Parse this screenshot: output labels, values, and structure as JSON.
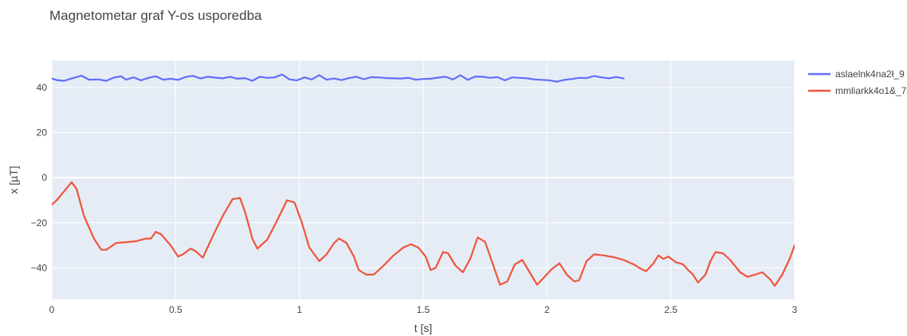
{
  "chart_data": {
    "type": "line",
    "title": "Magnetometar graf Y-os usporedba",
    "xlabel": "t [s]",
    "ylabel": "x [µT]",
    "xlim": [
      0,
      3
    ],
    "ylim": [
      -54,
      52
    ],
    "x_ticks": [
      0,
      0.5,
      1,
      1.5,
      2,
      2.5,
      3
    ],
    "x_tick_labels": [
      "0",
      "0.5",
      "1",
      "1.5",
      "2",
      "2.5",
      "3"
    ],
    "y_ticks": [
      -40,
      -20,
      0,
      20,
      40
    ],
    "y_tick_labels": [
      "−40",
      "−20",
      "0",
      "20",
      "40"
    ],
    "grid": true,
    "legend_position": "right",
    "series": [
      {
        "name": "aslaelnk4na2ł_9",
        "color": "#636efa",
        "points": [
          [
            0,
            44
          ],
          [
            0.02,
            43.3
          ],
          [
            0.05,
            43
          ],
          [
            0.08,
            44
          ],
          [
            0.12,
            45.3
          ],
          [
            0.15,
            43.5
          ],
          [
            0.19,
            43.6
          ],
          [
            0.22,
            43
          ],
          [
            0.25,
            44.4
          ],
          [
            0.28,
            45
          ],
          [
            0.3,
            43.5
          ],
          [
            0.33,
            44.5
          ],
          [
            0.36,
            43.2
          ],
          [
            0.39,
            44.3
          ],
          [
            0.42,
            45
          ],
          [
            0.45,
            43.5
          ],
          [
            0.48,
            43.9
          ],
          [
            0.51,
            43.4
          ],
          [
            0.54,
            44.7
          ],
          [
            0.57,
            45.2
          ],
          [
            0.6,
            44
          ],
          [
            0.63,
            44.8
          ],
          [
            0.66,
            44.4
          ],
          [
            0.69,
            44.1
          ],
          [
            0.72,
            44.8
          ],
          [
            0.75,
            43.9
          ],
          [
            0.78,
            44.2
          ],
          [
            0.81,
            43
          ],
          [
            0.84,
            44.8
          ],
          [
            0.87,
            44.3
          ],
          [
            0.9,
            44.5
          ],
          [
            0.93,
            45.8
          ],
          [
            0.96,
            43.6
          ],
          [
            0.99,
            43.2
          ],
          [
            1.02,
            44.5
          ],
          [
            1.05,
            43.6
          ],
          [
            1.08,
            45.5
          ],
          [
            1.11,
            43.5
          ],
          [
            1.14,
            44
          ],
          [
            1.17,
            43.3
          ],
          [
            1.2,
            44.2
          ],
          [
            1.23,
            44.8
          ],
          [
            1.26,
            43.7
          ],
          [
            1.29,
            44.6
          ],
          [
            1.32,
            44.5
          ],
          [
            1.35,
            44.2
          ],
          [
            1.38,
            44.1
          ],
          [
            1.41,
            44
          ],
          [
            1.44,
            44.3
          ],
          [
            1.47,
            43.5
          ],
          [
            1.5,
            43.8
          ],
          [
            1.53,
            43.9
          ],
          [
            1.56,
            44.4
          ],
          [
            1.59,
            44.8
          ],
          [
            1.62,
            43.6
          ],
          [
            1.65,
            45.5
          ],
          [
            1.68,
            43.4
          ],
          [
            1.71,
            44.9
          ],
          [
            1.74,
            44.8
          ],
          [
            1.77,
            44.3
          ],
          [
            1.8,
            44.6
          ],
          [
            1.83,
            43.2
          ],
          [
            1.86,
            44.5
          ],
          [
            1.89,
            44.3
          ],
          [
            1.92,
            44.1
          ],
          [
            1.95,
            43.6
          ],
          [
            1.98,
            43.4
          ],
          [
            2.01,
            43.2
          ],
          [
            2.04,
            42.6
          ],
          [
            2.07,
            43.4
          ],
          [
            2.1,
            43.8
          ],
          [
            2.13,
            44.3
          ],
          [
            2.16,
            44.2
          ],
          [
            2.19,
            45.1
          ],
          [
            2.22,
            44.5
          ],
          [
            2.25,
            44.1
          ],
          [
            2.28,
            44.7
          ],
          [
            2.31,
            44
          ]
        ]
      },
      {
        "name": "mmliarkk4o1&_7",
        "color": "#ef553b",
        "points": [
          [
            0,
            -12
          ],
          [
            0.02,
            -10
          ],
          [
            0.05,
            -6
          ],
          [
            0.08,
            -2
          ],
          [
            0.1,
            -5
          ],
          [
            0.13,
            -17
          ],
          [
            0.17,
            -27
          ],
          [
            0.2,
            -32
          ],
          [
            0.22,
            -32
          ],
          [
            0.26,
            -29
          ],
          [
            0.3,
            -28.6
          ],
          [
            0.34,
            -28.2
          ],
          [
            0.38,
            -27
          ],
          [
            0.4,
            -27
          ],
          [
            0.42,
            -24
          ],
          [
            0.44,
            -25
          ],
          [
            0.48,
            -30
          ],
          [
            0.51,
            -35
          ],
          [
            0.53,
            -34
          ],
          [
            0.56,
            -31.5
          ],
          [
            0.58,
            -32.5
          ],
          [
            0.61,
            -35.5
          ],
          [
            0.65,
            -26
          ],
          [
            0.69,
            -17
          ],
          [
            0.73,
            -9.5
          ],
          [
            0.76,
            -9
          ],
          [
            0.78,
            -15
          ],
          [
            0.81,
            -27
          ],
          [
            0.83,
            -31.5
          ],
          [
            0.87,
            -27.5
          ],
          [
            0.91,
            -19
          ],
          [
            0.95,
            -10
          ],
          [
            0.98,
            -11
          ],
          [
            1.01,
            -20
          ],
          [
            1.04,
            -31
          ],
          [
            1.08,
            -37
          ],
          [
            1.11,
            -34
          ],
          [
            1.14,
            -29
          ],
          [
            1.16,
            -27
          ],
          [
            1.19,
            -29
          ],
          [
            1.22,
            -35
          ],
          [
            1.24,
            -41
          ],
          [
            1.27,
            -43
          ],
          [
            1.3,
            -43
          ],
          [
            1.34,
            -39
          ],
          [
            1.38,
            -34.5
          ],
          [
            1.42,
            -31
          ],
          [
            1.45,
            -29.5
          ],
          [
            1.48,
            -31
          ],
          [
            1.51,
            -35
          ],
          [
            1.53,
            -41
          ],
          [
            1.55,
            -40
          ],
          [
            1.58,
            -33
          ],
          [
            1.6,
            -33.5
          ],
          [
            1.63,
            -39
          ],
          [
            1.66,
            -42
          ],
          [
            1.69,
            -36
          ],
          [
            1.72,
            -26.5
          ],
          [
            1.75,
            -28.5
          ],
          [
            1.78,
            -38
          ],
          [
            1.81,
            -47.5
          ],
          [
            1.84,
            -46
          ],
          [
            1.87,
            -38.5
          ],
          [
            1.9,
            -36.5
          ],
          [
            1.93,
            -42
          ],
          [
            1.96,
            -47.5
          ],
          [
            1.99,
            -44
          ],
          [
            2.02,
            -40.5
          ],
          [
            2.05,
            -38
          ],
          [
            2.08,
            -43
          ],
          [
            2.11,
            -46
          ],
          [
            2.13,
            -45.5
          ],
          [
            2.16,
            -37
          ],
          [
            2.19,
            -34
          ],
          [
            2.23,
            -34.5
          ],
          [
            2.27,
            -35.3
          ],
          [
            2.31,
            -36.5
          ],
          [
            2.35,
            -38.5
          ],
          [
            2.38,
            -40.5
          ],
          [
            2.4,
            -41.5
          ],
          [
            2.43,
            -38
          ],
          [
            2.45,
            -34.5
          ],
          [
            2.47,
            -36
          ],
          [
            2.49,
            -35
          ],
          [
            2.52,
            -37.5
          ],
          [
            2.55,
            -38.5
          ],
          [
            2.57,
            -41
          ],
          [
            2.59,
            -43
          ],
          [
            2.61,
            -46.5
          ],
          [
            2.64,
            -43
          ],
          [
            2.66,
            -37
          ],
          [
            2.68,
            -33
          ],
          [
            2.71,
            -33.5
          ],
          [
            2.74,
            -36.5
          ],
          [
            2.78,
            -42
          ],
          [
            2.81,
            -44
          ],
          [
            2.84,
            -43
          ],
          [
            2.87,
            -42
          ],
          [
            2.9,
            -45
          ],
          [
            2.92,
            -48
          ],
          [
            2.95,
            -43
          ],
          [
            2.98,
            -36
          ],
          [
            3.0,
            -30
          ],
          [
            3.03,
            -29.5
          ],
          [
            3.06,
            -30.5
          ]
        ]
      }
    ]
  }
}
